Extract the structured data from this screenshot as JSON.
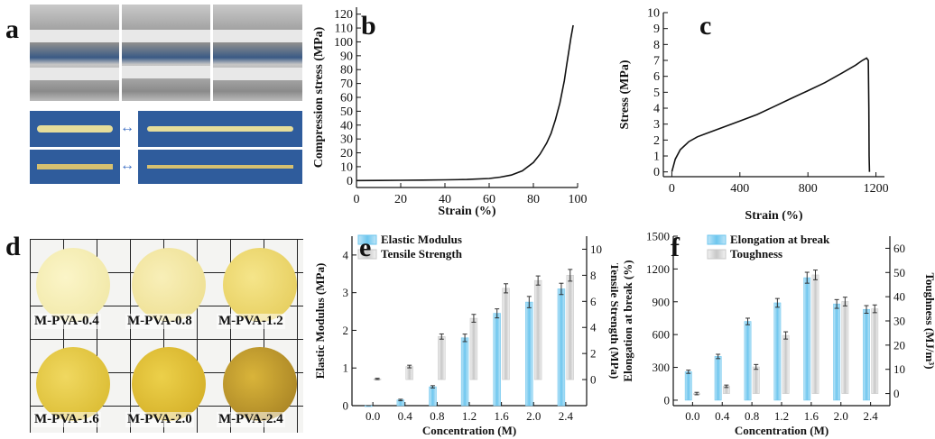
{
  "panel_letters": {
    "a": "a",
    "b": "b",
    "c": "c",
    "d": "d",
    "e": "e",
    "f": "f"
  },
  "photo_d_labels": [
    "M-PVA-0.4",
    "M-PVA-0.8",
    "M-PVA-1.2",
    "M-PVA-1.6",
    "M-PVA-2.0",
    "M-PVA-2.4"
  ],
  "colors": {
    "blue": "#6ec6ee",
    "gray": "#c8c8c8",
    "line": "#111111",
    "disc_light": "#f0e6a0",
    "disc_dark": "#d8b820"
  },
  "chart_data": [
    {
      "id": "b",
      "type": "line",
      "xlabel": "Strain (%)",
      "ylabel": "Compression stress (MPa)",
      "xlim": [
        0,
        100
      ],
      "ylim": [
        -5,
        125
      ],
      "xticks": [
        "0",
        "20",
        "40",
        "60",
        "80",
        "100"
      ],
      "xtick_values": [
        0,
        20,
        40,
        60,
        80,
        100
      ],
      "yticks": [
        "0",
        "10",
        "20",
        "30",
        "40",
        "50",
        "60",
        "70",
        "80",
        "90",
        "100",
        "110",
        "120"
      ],
      "ytick_values": [
        0,
        10,
        20,
        30,
        40,
        50,
        60,
        70,
        80,
        90,
        100,
        110,
        120
      ],
      "x": [
        0,
        10,
        20,
        30,
        40,
        50,
        60,
        65,
        70,
        75,
        80,
        83,
        86,
        88,
        90,
        92,
        94,
        95,
        96,
        97,
        98
      ],
      "y": [
        0,
        0.1,
        0.2,
        0.3,
        0.5,
        0.8,
        1.5,
        2.5,
        4,
        7,
        13,
        19,
        27,
        34,
        44,
        56,
        72,
        83,
        93,
        103,
        112
      ]
    },
    {
      "id": "c",
      "type": "line",
      "xlabel": "Strain (%)",
      "ylabel": "Stress (MPa)",
      "xlim": [
        -50,
        1250
      ],
      "ylim": [
        -0.3,
        10
      ],
      "xticks": [
        "0",
        "400",
        "800",
        "1200"
      ],
      "xtick_values": [
        0,
        400,
        800,
        1200
      ],
      "yticks": [
        "0",
        "1",
        "2",
        "3",
        "4",
        "5",
        "6",
        "7",
        "8",
        "9",
        "10"
      ],
      "ytick_values": [
        0,
        1,
        2,
        3,
        4,
        5,
        6,
        7,
        8,
        9,
        10
      ],
      "x": [
        0,
        20,
        50,
        100,
        150,
        200,
        300,
        400,
        500,
        600,
        700,
        800,
        900,
        1000,
        1080,
        1120,
        1145,
        1155,
        1158,
        1160,
        1162
      ],
      "y": [
        0,
        0.8,
        1.4,
        1.9,
        2.2,
        2.4,
        2.8,
        3.2,
        3.6,
        4.1,
        4.6,
        5.1,
        5.6,
        6.2,
        6.7,
        7.0,
        7.15,
        7.0,
        4,
        1,
        0
      ]
    },
    {
      "id": "e",
      "type": "bar",
      "xlabel": "Concentration (M)",
      "ylabel": "Elastic Modulus (MPa)",
      "ylabel_right": "Tensile Strength (MPa)",
      "categories": [
        "0.0",
        "0.4",
        "0.8",
        "1.2",
        "1.6",
        "2.0",
        "2.4"
      ],
      "ylim": [
        0,
        4.5
      ],
      "ylim_right": [
        -2,
        11
      ],
      "yticks": [
        "0",
        "1",
        "2",
        "3",
        "4"
      ],
      "ytick_values": [
        0,
        1,
        2,
        3,
        4
      ],
      "yticks_right": [
        "0",
        "2",
        "4",
        "6",
        "8",
        "10"
      ],
      "ytick_values_right": [
        0,
        2,
        4,
        6,
        8,
        10
      ],
      "legend": [
        "Elastic Modulus",
        "Tensile Strength"
      ],
      "series": [
        {
          "name": "Elastic Modulus",
          "axis": "left",
          "values": [
            0,
            0.15,
            0.5,
            1.8,
            2.45,
            2.75,
            3.1
          ],
          "errors": [
            0,
            0.02,
            0.03,
            0.1,
            0.12,
            0.15,
            0.15
          ]
        },
        {
          "name": "Tensile Strength",
          "axis": "right",
          "values": [
            0.05,
            1.0,
            3.3,
            4.7,
            7.0,
            7.6,
            8.0
          ],
          "errors": [
            0.05,
            0.1,
            0.2,
            0.3,
            0.35,
            0.35,
            0.45
          ]
        }
      ]
    },
    {
      "id": "f",
      "type": "bar",
      "xlabel": "Concentration (M)",
      "ylabel": "Elongation at break (%)",
      "ylabel_right": "Toughness (MJ/m³)",
      "categories": [
        "0.0",
        "0.4",
        "0.8",
        "1.2",
        "1.6",
        "2.0",
        "2.4"
      ],
      "ylim": [
        -50,
        1500
      ],
      "ylim_right": [
        -5,
        65
      ],
      "yticks": [
        "0",
        "300",
        "600",
        "900",
        "1200",
        "1500"
      ],
      "ytick_values": [
        0,
        300,
        600,
        900,
        1200,
        1500
      ],
      "yticks_right": [
        "0",
        "10",
        "20",
        "30",
        "40",
        "50",
        "60"
      ],
      "ytick_values_right": [
        0,
        10,
        20,
        30,
        40,
        50,
        60
      ],
      "legend": [
        "Elongation at break",
        "Toughness"
      ],
      "series": [
        {
          "name": "Elongation at break",
          "axis": "left",
          "values": [
            260,
            400,
            720,
            890,
            1120,
            880,
            830
          ],
          "errors": [
            15,
            20,
            30,
            40,
            50,
            40,
            35
          ]
        },
        {
          "name": "Toughness",
          "axis": "right",
          "values": [
            0,
            3,
            11,
            24,
            49,
            38,
            35
          ],
          "errors": [
            0.5,
            0.5,
            1,
            1.5,
            2,
            1.8,
            1.6
          ]
        }
      ]
    }
  ]
}
